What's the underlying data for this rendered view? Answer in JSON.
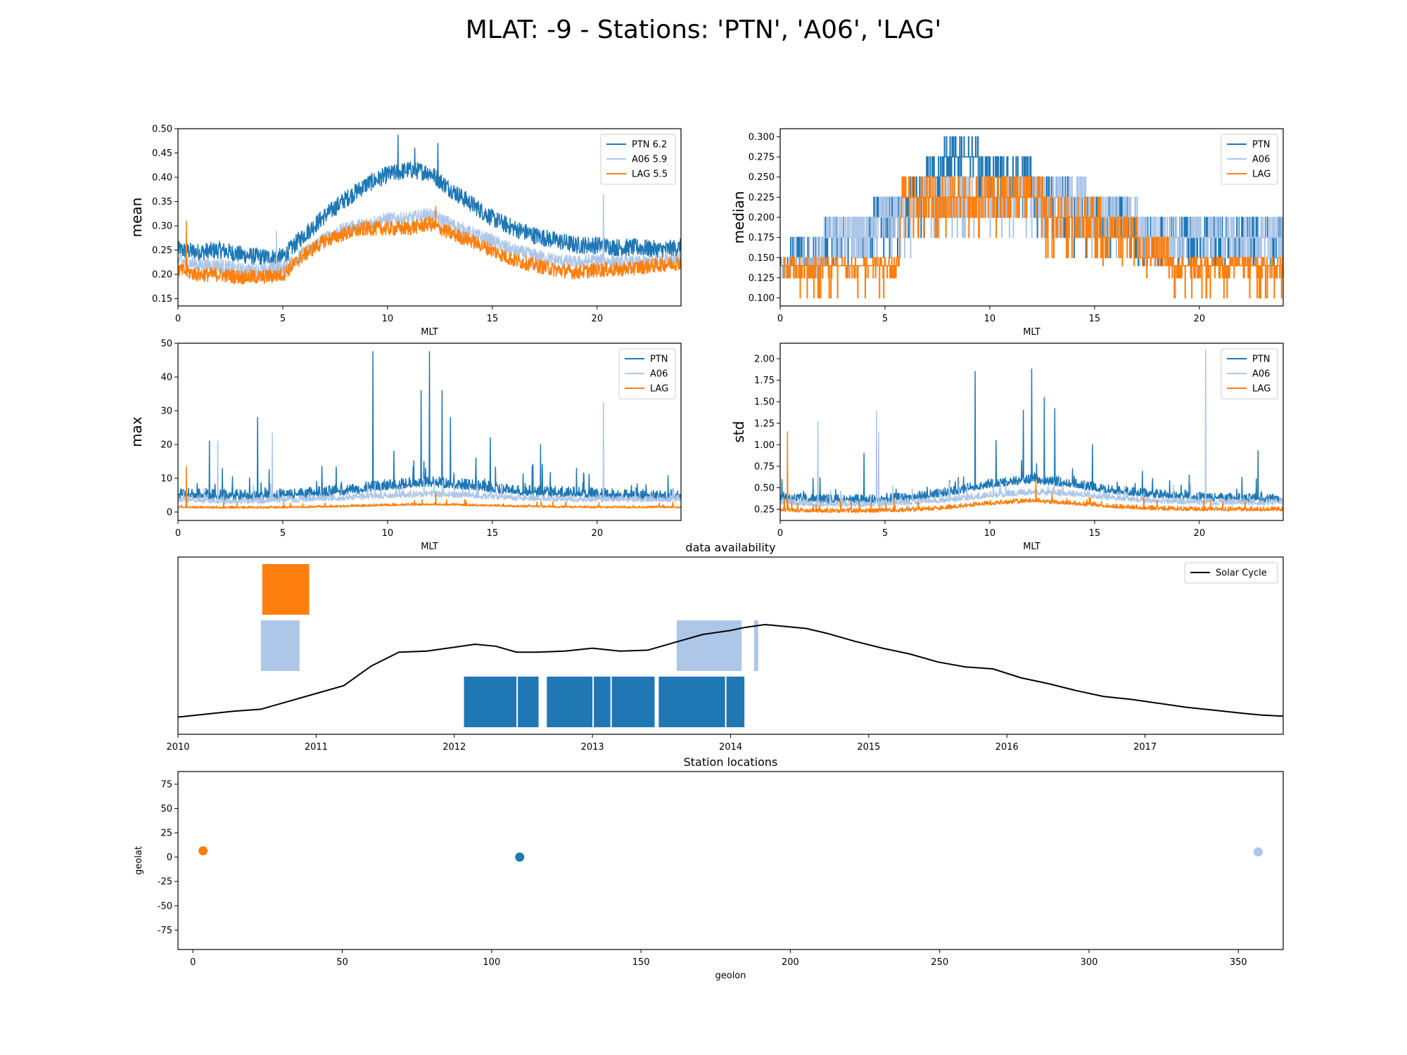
{
  "suptitle": "MLAT: -9 - Stations: 'PTN', 'A06', 'LAG'",
  "colors": {
    "PTN": "#1f77b4",
    "A06": "#aec7e8",
    "LAG": "#ff7f0e",
    "solar": "#000000"
  },
  "chart_data": [
    {
      "type": "line",
      "panel": "mean",
      "title": "",
      "xlabel": "MLT",
      "ylabel": "mean",
      "xlim": [
        0,
        24
      ],
      "ylim": [
        0.135,
        0.5
      ],
      "xticks": [
        0,
        5,
        10,
        15,
        20
      ],
      "yticks": [
        0.15,
        0.2,
        0.25,
        0.3,
        0.35,
        0.4,
        0.45,
        0.5
      ],
      "ytick_decimals": 2,
      "legend": "top-right",
      "series": [
        {
          "name": "PTN 6.2",
          "color": "#1f77b4",
          "x": [
            0,
            1,
            2,
            3,
            4,
            5,
            6,
            7,
            8,
            9,
            10,
            11,
            12,
            13,
            14,
            15,
            16,
            17,
            18,
            19,
            20,
            21,
            22,
            23,
            24
          ],
          "y": [
            0.245,
            0.24,
            0.245,
            0.235,
            0.23,
            0.23,
            0.275,
            0.315,
            0.35,
            0.38,
            0.4,
            0.41,
            0.405,
            0.37,
            0.34,
            0.31,
            0.29,
            0.275,
            0.265,
            0.255,
            0.255,
            0.25,
            0.25,
            0.245,
            0.25
          ],
          "noise": 0.018,
          "spikes": [
            [
              10.5,
              0.487
            ],
            [
              12.4,
              0.47
            ],
            [
              11.3,
              0.46
            ]
          ]
        },
        {
          "name": "A06 5.9",
          "color": "#aec7e8",
          "x": [
            0,
            1,
            2,
            3,
            4,
            5,
            6,
            7,
            8,
            9,
            10,
            11,
            12,
            13,
            14,
            15,
            16,
            17,
            18,
            19,
            20,
            21,
            22,
            23,
            24
          ],
          "y": [
            0.225,
            0.215,
            0.215,
            0.205,
            0.205,
            0.21,
            0.24,
            0.27,
            0.29,
            0.3,
            0.31,
            0.31,
            0.32,
            0.3,
            0.28,
            0.265,
            0.245,
            0.235,
            0.225,
            0.22,
            0.225,
            0.22,
            0.22,
            0.225,
            0.23
          ],
          "noise": 0.014,
          "spikes": [
            [
              20.3,
              0.365
            ],
            [
              4.7,
              0.29
            ]
          ]
        },
        {
          "name": "LAG 5.5",
          "color": "#ff7f0e",
          "x": [
            0,
            1,
            2,
            3,
            4,
            5,
            6,
            7,
            8,
            9,
            10,
            11,
            12,
            13,
            14,
            15,
            16,
            17,
            18,
            19,
            20,
            21,
            22,
            23,
            24
          ],
          "y": [
            0.205,
            0.195,
            0.195,
            0.19,
            0.19,
            0.195,
            0.235,
            0.265,
            0.28,
            0.29,
            0.29,
            0.29,
            0.3,
            0.28,
            0.265,
            0.245,
            0.225,
            0.215,
            0.205,
            0.2,
            0.205,
            0.205,
            0.21,
            0.215,
            0.22
          ],
          "noise": 0.015,
          "spikes": [
            [
              0.4,
              0.31
            ],
            [
              12.3,
              0.34
            ]
          ]
        }
      ]
    },
    {
      "type": "line",
      "panel": "median",
      "title": "",
      "xlabel": "MLT",
      "ylabel": "median",
      "xlim": [
        0,
        24
      ],
      "ylim": [
        0.09,
        0.31
      ],
      "xticks": [
        0,
        5,
        10,
        15,
        20
      ],
      "yticks": [
        0.1,
        0.125,
        0.15,
        0.175,
        0.2,
        0.225,
        0.25,
        0.275,
        0.3
      ],
      "ytick_decimals": 3,
      "legend": "top-right",
      "series": [
        {
          "name": "PTN",
          "color": "#1f77b4",
          "step": true,
          "x": [
            0,
            5.6,
            8.2,
            13.2,
            14.6,
            18.6,
            24
          ],
          "y": [
            0.14,
            0.2,
            0.275,
            0.225,
            0.2,
            0.175,
            0.175
          ],
          "levels": [
            0.1,
            0.125,
            0.14,
            0.15,
            0.175,
            0.2,
            0.225,
            0.25,
            0.275,
            0.3
          ]
        },
        {
          "name": "A06",
          "color": "#aec7e8",
          "step": true,
          "x": [
            0,
            5.6,
            7.8,
            14.0,
            15.2,
            19.0,
            24
          ],
          "y": [
            0.14,
            0.2,
            0.225,
            0.225,
            0.2,
            0.175,
            0.175
          ],
          "levels": [
            0.1,
            0.125,
            0.14,
            0.15,
            0.175,
            0.2,
            0.225,
            0.25,
            0.275,
            0.3
          ]
        },
        {
          "name": "LAG",
          "color": "#ff7f0e",
          "step": true,
          "x": [
            0,
            5.6,
            5.8,
            14.0,
            16.0,
            19.0,
            24
          ],
          "y": [
            0.14,
            0.14,
            0.225,
            0.21,
            0.175,
            0.14,
            0.14
          ],
          "levels": [
            0.1,
            0.125,
            0.14,
            0.15,
            0.175,
            0.2,
            0.225,
            0.25,
            0.275,
            0.3
          ]
        }
      ]
    },
    {
      "type": "line",
      "panel": "max",
      "title": "",
      "xlabel": "MLT",
      "ylabel": "max",
      "xlim": [
        0,
        24
      ],
      "ylim": [
        -2.5,
        50
      ],
      "xticks": [
        0,
        5,
        10,
        15,
        20
      ],
      "yticks": [
        0,
        10,
        20,
        30,
        40,
        50
      ],
      "ytick_decimals": 0,
      "legend": "top-right",
      "series": [
        {
          "name": "PTN",
          "color": "#1f77b4",
          "x": [
            0,
            2,
            4,
            6,
            8,
            10,
            12,
            14,
            16,
            18,
            20,
            22,
            24
          ],
          "y": [
            4,
            3.5,
            3.5,
            4,
            5,
            6.5,
            7.5,
            6.5,
            5,
            4.5,
            4,
            3.5,
            3.5
          ],
          "noise": 2.5,
          "spikes": [
            [
              9.3,
              47.5
            ],
            [
              12.0,
              47.5
            ],
            [
              11.6,
              36
            ],
            [
              12.6,
              36
            ],
            [
              3.8,
              28
            ],
            [
              14.9,
              22
            ],
            [
              1.5,
              21
            ],
            [
              17.3,
              20
            ],
            [
              13.0,
              28
            ],
            [
              10.3,
              18
            ]
          ]
        },
        {
          "name": "A06",
          "color": "#aec7e8",
          "x": [
            0,
            2,
            4,
            6,
            8,
            10,
            12,
            14,
            16,
            18,
            20,
            22,
            24
          ],
          "y": [
            3,
            2.5,
            2.5,
            3,
            3.5,
            4,
            4.5,
            4,
            3.5,
            3,
            3,
            3,
            3
          ],
          "noise": 1.5,
          "spikes": [
            [
              20.3,
              32.5
            ],
            [
              4.5,
              23.5
            ],
            [
              1.9,
              21
            ]
          ]
        },
        {
          "name": "LAG",
          "color": "#ff7f0e",
          "x": [
            0,
            2,
            4,
            6,
            8,
            10,
            12,
            14,
            16,
            18,
            20,
            22,
            24
          ],
          "y": [
            1.2,
            1.1,
            1.1,
            1.2,
            1.5,
            1.8,
            2.0,
            1.8,
            1.5,
            1.3,
            1.2,
            1.2,
            1.2
          ],
          "noise": 0.5,
          "spikes": [
            [
              0.4,
              13.5
            ],
            [
              12.3,
              6
            ]
          ]
        }
      ]
    },
    {
      "type": "line",
      "panel": "std",
      "title": "",
      "xlabel": "MLT",
      "ylabel": "std",
      "xlim": [
        0,
        24
      ],
      "ylim": [
        0.12,
        2.18
      ],
      "xticks": [
        0,
        5,
        10,
        15,
        20
      ],
      "yticks": [
        0.25,
        0.5,
        0.75,
        1.0,
        1.25,
        1.5,
        1.75,
        2.0
      ],
      "ytick_decimals": 2,
      "legend": "top-right",
      "series": [
        {
          "name": "PTN",
          "color": "#1f77b4",
          "x": [
            0,
            2,
            4,
            6,
            8,
            10,
            12,
            14,
            16,
            18,
            20,
            22,
            24
          ],
          "y": [
            0.35,
            0.32,
            0.32,
            0.34,
            0.4,
            0.5,
            0.55,
            0.5,
            0.42,
            0.38,
            0.35,
            0.33,
            0.33
          ],
          "noise": 0.08,
          "spikes": [
            [
              9.3,
              1.85
            ],
            [
              12.0,
              1.88
            ],
            [
              11.6,
              1.4
            ],
            [
              12.6,
              1.55
            ],
            [
              13.1,
              1.42
            ],
            [
              10.3,
              1.05
            ],
            [
              4.0,
              0.9
            ],
            [
              14.9,
              1.0
            ],
            [
              22.8,
              0.93
            ]
          ]
        },
        {
          "name": "A06",
          "color": "#aec7e8",
          "x": [
            0,
            2,
            4,
            6,
            8,
            10,
            12,
            14,
            16,
            18,
            20,
            22,
            24
          ],
          "y": [
            0.3,
            0.28,
            0.28,
            0.3,
            0.33,
            0.38,
            0.42,
            0.4,
            0.35,
            0.32,
            0.3,
            0.3,
            0.3
          ],
          "noise": 0.06,
          "spikes": [
            [
              20.3,
              2.1
            ],
            [
              4.6,
              1.4
            ],
            [
              1.8,
              1.27
            ],
            [
              4.7,
              1.15
            ]
          ]
        },
        {
          "name": "LAG",
          "color": "#ff7f0e",
          "x": [
            0,
            2,
            4,
            6,
            8,
            10,
            12,
            14,
            16,
            18,
            20,
            22,
            24
          ],
          "y": [
            0.22,
            0.21,
            0.21,
            0.22,
            0.25,
            0.3,
            0.33,
            0.3,
            0.26,
            0.24,
            0.23,
            0.23,
            0.23
          ],
          "noise": 0.04,
          "spikes": [
            [
              0.35,
              1.15
            ],
            [
              12.2,
              0.6
            ]
          ]
        }
      ]
    },
    {
      "type": "bar",
      "panel": "availability",
      "title": "data availability",
      "xlim": [
        2010.0,
        2018.0
      ],
      "xticks": [
        2010,
        2011,
        2012,
        2013,
        2014,
        2015,
        2016,
        2017
      ],
      "legend": "top-right",
      "rows": [
        {
          "station": "PTN",
          "row": 0,
          "color": "#1f77b4",
          "intervals": [
            [
              2012.07,
              2012.45
            ],
            [
              2012.46,
              2012.61
            ],
            [
              2012.67,
              2013.0
            ],
            [
              2013.01,
              2013.13
            ],
            [
              2013.14,
              2013.45
            ],
            [
              2013.48,
              2013.96
            ],
            [
              2013.97,
              2014.1
            ]
          ]
        },
        {
          "station": "A06",
          "row": 1,
          "color": "#aec7e8",
          "intervals": [
            [
              2010.6,
              2010.88
            ],
            [
              2013.61,
              2014.08
            ],
            [
              2014.17,
              2014.2
            ]
          ]
        },
        {
          "station": "LAG",
          "row": 2,
          "color": "#ff7f0e",
          "intervals": [
            [
              2010.61,
              2010.95
            ]
          ]
        }
      ],
      "series": [
        {
          "name": "Solar Cycle",
          "color": "#000000",
          "x": [
            2010.0,
            2010.4,
            2010.6,
            2010.8,
            2011.0,
            2011.2,
            2011.4,
            2011.6,
            2011.8,
            2012.0,
            2012.15,
            2012.3,
            2012.45,
            2012.6,
            2012.8,
            2013.0,
            2013.2,
            2013.4,
            2013.6,
            2013.8,
            2014.0,
            2014.1,
            2014.25,
            2014.4,
            2014.55,
            2014.7,
            2014.9,
            2015.1,
            2015.3,
            2015.5,
            2015.7,
            2015.9,
            2016.1,
            2016.3,
            2016.5,
            2016.7,
            2016.9,
            2017.1,
            2017.3,
            2017.5,
            2017.7,
            2017.85,
            2018.0
          ],
          "y": [
            6,
            12,
            14,
            22,
            30,
            38,
            58,
            72,
            73,
            77,
            80,
            78,
            72,
            72,
            73,
            76,
            73,
            74,
            82,
            90,
            94,
            97,
            100,
            98,
            96,
            91,
            83,
            76,
            70,
            62,
            57,
            55,
            46,
            40,
            33,
            27,
            24,
            20,
            16,
            13,
            10,
            8,
            7
          ]
        }
      ]
    },
    {
      "type": "scatter",
      "panel": "locations",
      "title": "Station locations",
      "xlabel": "geolon",
      "ylabel": "geolat",
      "xlim": [
        -5,
        365
      ],
      "ylim": [
        -95,
        88
      ],
      "xticks": [
        0,
        50,
        100,
        150,
        200,
        250,
        300,
        350
      ],
      "yticks": [
        -75,
        -50,
        -25,
        0,
        25,
        50,
        75
      ],
      "points": [
        {
          "station": "LAG",
          "x": 3.4,
          "y": 6.5,
          "color": "#ff7f0e"
        },
        {
          "station": "PTN",
          "x": 109.4,
          "y": 0.0,
          "color": "#1f77b4"
        },
        {
          "station": "A06",
          "x": 356.6,
          "y": 5.4,
          "color": "#aec7e8"
        }
      ]
    }
  ]
}
